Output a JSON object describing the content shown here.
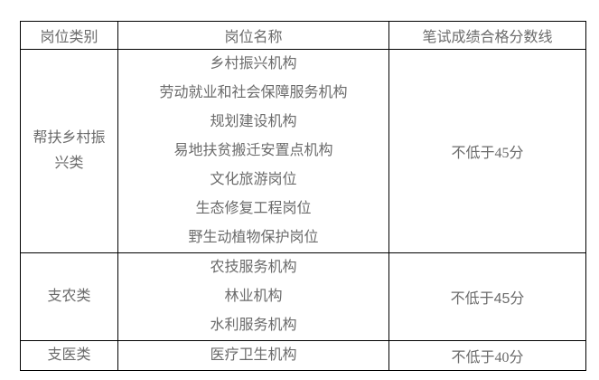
{
  "colors": {
    "background": "#ffffff",
    "border": "#000000",
    "text": "#6b6b6b"
  },
  "table": {
    "headers": [
      "岗位类别",
      "岗位名称",
      "笔试成绩合格分数线"
    ],
    "rows": [
      {
        "category": "帮扶乡村振兴类",
        "positions": [
          "乡村振兴机构",
          "劳动就业和社会保障服务机构",
          "规划建设机构",
          "易地扶贫搬迁安置点机构",
          "文化旅游岗位",
          "生态修复工程岗位",
          "野生动植物保护岗位"
        ],
        "score": {
          "prefix": "不低于",
          "value": "45",
          "suffix": "分"
        }
      },
      {
        "category": "支农类",
        "positions": [
          "农技服务机构",
          "林业机构",
          "水利服务机构"
        ],
        "score": {
          "prefix": "不低于",
          "value": "45",
          "suffix": "分"
        }
      },
      {
        "category": "支医类",
        "positions": [
          "医疗卫生机构"
        ],
        "score": {
          "prefix": "不低于",
          "value": "40",
          "suffix": "分"
        }
      }
    ]
  }
}
